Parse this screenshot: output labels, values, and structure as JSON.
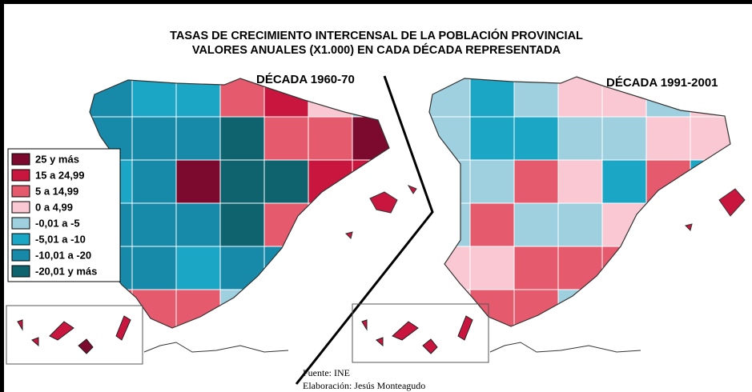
{
  "title": [
    "TASAS DE CRECIMIENTO INTERCENSAL DE LA POBLACIÓN PROVINCIAL",
    "VALORES ANUALES (X1.000) EN CADA DÉCADA REPRESENTADA"
  ],
  "maps": [
    {
      "label": "DÉCADA 1960-70"
    },
    {
      "label": "DÉCADA 1991-2001"
    }
  ],
  "legend": [
    {
      "label": "25 y más",
      "color": "#7b0a2e"
    },
    {
      "label": "15 a 24,99",
      "color": "#c8163f"
    },
    {
      "label": "5 a 14,99",
      "color": "#e65a6e"
    },
    {
      "label": "0 a 4,99",
      "color": "#f9c8d2"
    },
    {
      "label": "-0,01 a -5",
      "color": "#9fd0df"
    },
    {
      "label": "-5,01 a -10",
      "color": "#1aa6c4"
    },
    {
      "label": "-10,01 a -20",
      "color": "#168aa8"
    },
    {
      "label": "-20,01 y más",
      "color": "#0e636e"
    }
  ],
  "source": [
    "Fuente: INE",
    "Elaboración: Jesús Monteagudo"
  ]
}
